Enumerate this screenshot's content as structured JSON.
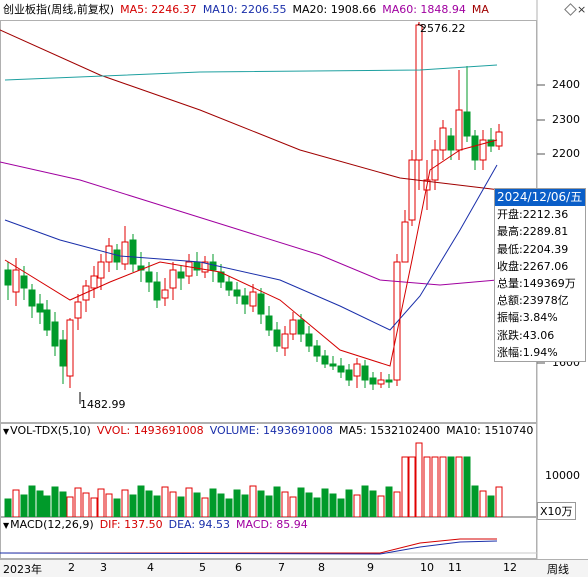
{
  "price": {
    "title": "创业板指(周线,前复权)",
    "ma5": "MA5: 2246.37",
    "ma10": "MA10: 2206.55",
    "ma20": "MA20: 1908.66",
    "ma60": "MA60: 1848.94",
    "ma_more": "MA",
    "high_label": "2576.22",
    "low_label": "1482.99",
    "y_ticks": [
      "2400",
      "2300",
      "2200",
      "1600"
    ],
    "colors": {
      "ma5": "#d40000",
      "ma10": "#1a2faa",
      "ma20": "#a000a0",
      "ma60": "#a00000",
      "long": "#1ea0a0",
      "up": "#e00000",
      "down": "#009a2a"
    }
  },
  "tooltip": {
    "date": "2024/12/06/五",
    "open": "开盘:2212.36",
    "high": "最高:2289.81",
    "low": "最低:2204.39",
    "close": "收盘:2267.06",
    "volume": "总量:149369万",
    "amount": "总额:23978亿",
    "amplitude": "振幅:3.84%",
    "change": "涨跌:43.06",
    "change_pct": "涨幅:1.94%"
  },
  "volume": {
    "title": "VOL-TDX(5,10)",
    "vvol": "VVOL: 1493691008",
    "volume": "VOLUME: 1493691008",
    "ma5": "MA5: 1532102400",
    "ma10": "MA10: 1510740",
    "y_tick": "10000",
    "unit": "X10万"
  },
  "macd": {
    "title": "MACD(12,26,9)",
    "dif": "DIF: 137.50",
    "dea": "DEA: 94.53",
    "macd": "MACD: 85.94"
  },
  "x_axis": {
    "labels": [
      "2023年",
      "2",
      "3",
      "4",
      "5",
      "6",
      "7",
      "8",
      "9",
      "10",
      "11",
      "12"
    ],
    "period": "周线"
  }
}
